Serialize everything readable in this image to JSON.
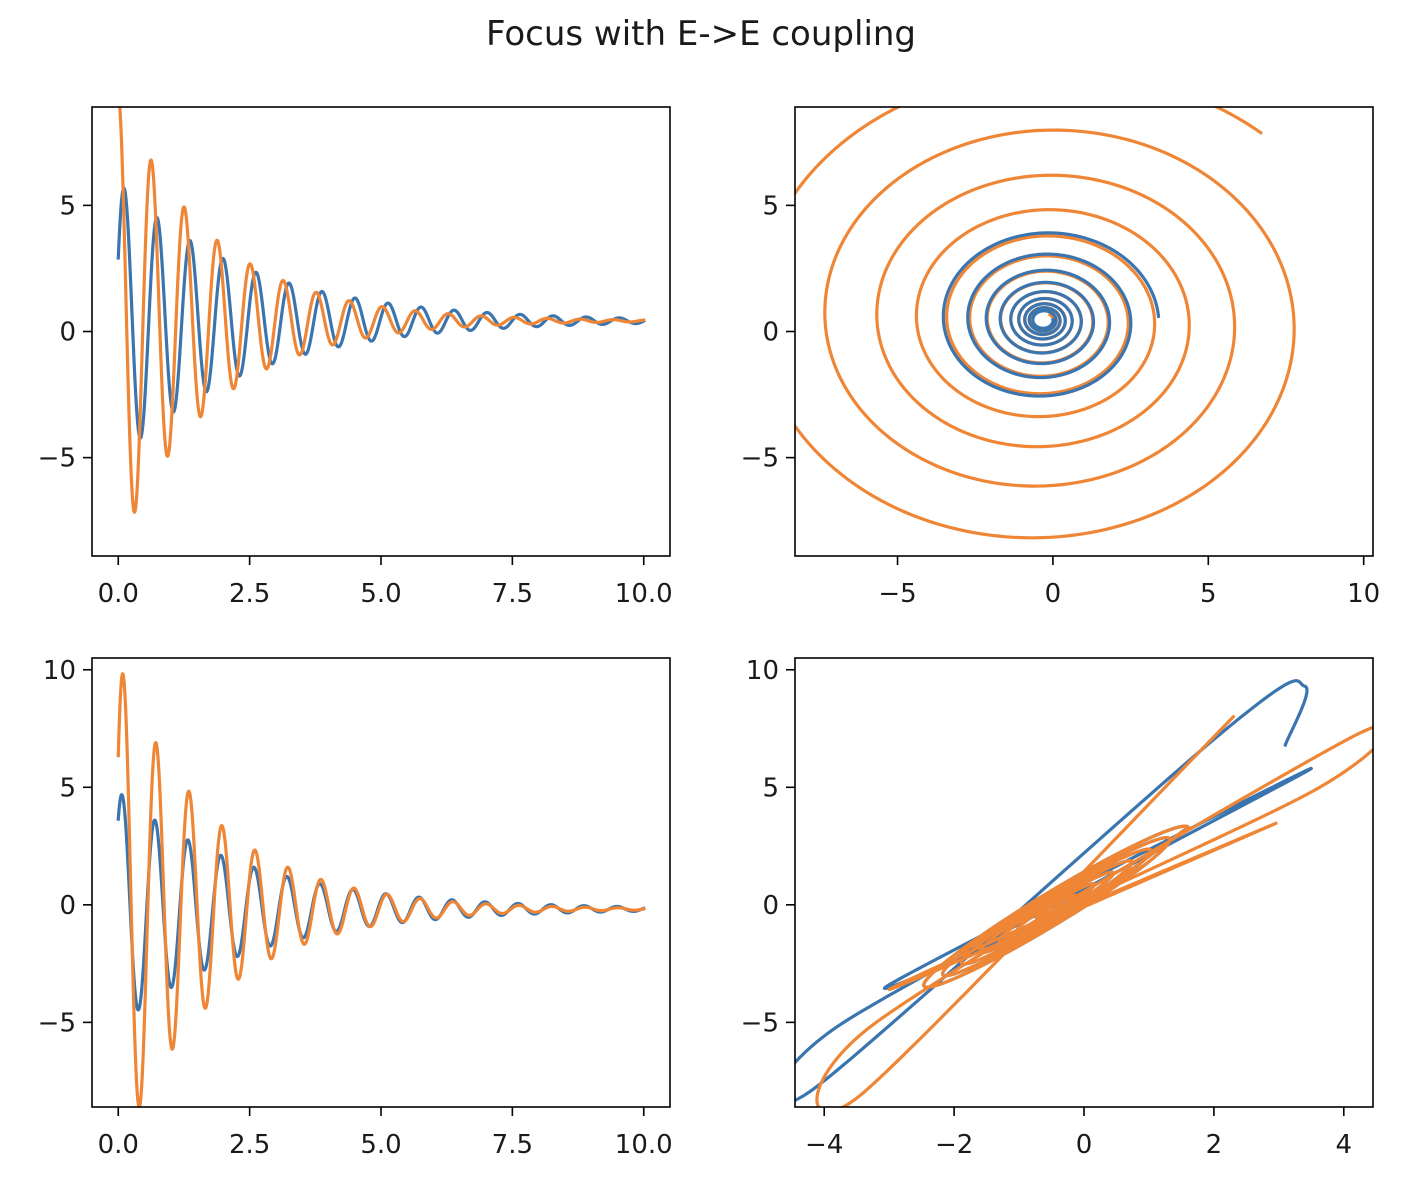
{
  "figure": {
    "suptitle": "Focus with E->E coupling",
    "colors": {
      "blue": "#3b75af",
      "orange": "#ef8636"
    }
  },
  "chart_data": [
    {
      "type": "line",
      "panel": "top-left",
      "title": "",
      "xlabel": "",
      "ylabel": "",
      "xlim": [
        -0.5,
        10.5
      ],
      "ylim": [
        -8.9,
        8.9
      ],
      "xticks": [
        0.0,
        2.5,
        5.0,
        7.5,
        10.0
      ],
      "xtick_labels": [
        "0.0",
        "2.5",
        "5.0",
        "7.5",
        "10.0"
      ],
      "yticks": [
        -5,
        0,
        5
      ],
      "ytick_labels": [
        "−5",
        "0",
        "5"
      ],
      "series": [
        {
          "color": "#3b75af",
          "model": "damped_oscillation",
          "t_range": [
            0,
            10
          ],
          "offset": 0.42,
          "amplitude": 5.5,
          "decay_rate": 0.4,
          "angular_freq": 10.0,
          "phase": -1.1
        },
        {
          "color": "#ef8636",
          "model": "damped_oscillation",
          "t_range": [
            0,
            10
          ],
          "offset": 0.42,
          "amplitude": 9.0,
          "decay_rate": 0.55,
          "angular_freq": 10.0,
          "phase": 0.0
        }
      ]
    },
    {
      "type": "line",
      "panel": "top-right",
      "title": "",
      "xlabel": "",
      "ylabel": "",
      "xlim": [
        -8.3,
        10.3
      ],
      "ylim": [
        -8.9,
        8.9
      ],
      "xticks": [
        -5,
        0,
        5,
        10
      ],
      "xtick_labels": [
        "−5",
        "0",
        "5",
        "10"
      ],
      "yticks": [
        -5,
        0,
        5
      ],
      "ytick_labels": [
        "−5",
        "0",
        "5"
      ],
      "series": [
        {
          "color": "#ef8636",
          "model": "spiral",
          "center": [
            -0.3,
            0.45
          ],
          "start": [
            6.8,
            8.0
          ],
          "r_start": 10.2,
          "r_end": 0.3,
          "turns": 13
        },
        {
          "color": "#3b75af",
          "model": "spiral",
          "center": [
            -0.3,
            0.45
          ],
          "start": [
            3.4,
            0.6
          ],
          "r_start": 3.7,
          "r_end": 0.3,
          "turns": 9
        }
      ]
    },
    {
      "type": "line",
      "panel": "bottom-left",
      "title": "",
      "xlabel": "",
      "ylabel": "",
      "xlim": [
        -0.5,
        10.5
      ],
      "ylim": [
        -8.6,
        10.5
      ],
      "xticks": [
        0.0,
        2.5,
        5.0,
        7.5,
        10.0
      ],
      "xtick_labels": [
        "0.0",
        "2.5",
        "5.0",
        "7.5",
        "10.0"
      ],
      "yticks": [
        -5,
        0,
        5,
        10
      ],
      "ytick_labels": [
        "−5",
        "0",
        "5",
        "10"
      ],
      "series": [
        {
          "color": "#3b75af",
          "model": "damped_oscillation",
          "t_range": [
            0,
            10
          ],
          "offset": -0.18,
          "amplitude": 5.0,
          "decay_rate": 0.4,
          "angular_freq": 10.0,
          "phase": -0.7
        },
        {
          "color": "#ef8636",
          "model": "damped_oscillation",
          "t_range": [
            0,
            10
          ],
          "offset": -0.18,
          "amplitude": 10.5,
          "decay_rate": 0.55,
          "angular_freq": 10.0,
          "phase": -0.9
        }
      ]
    },
    {
      "type": "line",
      "panel": "bottom-right",
      "title": "",
      "xlabel": "",
      "ylabel": "",
      "xlim": [
        -4.45,
        4.45
      ],
      "ylim": [
        -8.6,
        10.5
      ],
      "xticks": [
        -4,
        -2,
        0,
        2,
        4
      ],
      "xtick_labels": [
        "−4",
        "−2",
        "0",
        "2",
        "4"
      ],
      "yticks": [
        -5,
        0,
        5,
        10
      ],
      "ytick_labels": [
        "−5",
        "0",
        "5",
        "10"
      ],
      "series": [
        {
          "color": "#3b75af",
          "model": "tilted_ellipse_spiral",
          "center": [
            -0.5,
            -0.2
          ],
          "points_approx": [
            [
              3.1,
              6.8
            ],
            [
              3.4,
              9.3
            ],
            [
              2.2,
              7.5
            ],
            [
              -4.1,
              -7.7
            ],
            [
              -3.7,
              -5.0
            ],
            [
              3.5,
              5.8
            ],
            [
              -3.0,
              -3.4
            ],
            [
              0.0,
              0.0
            ]
          ]
        },
        {
          "color": "#ef8636",
          "model": "tilted_ellipse_spiral",
          "center": [
            -0.5,
            -0.2
          ],
          "points_approx": [
            [
              2.3,
              8.0
            ],
            [
              -3.4,
              -8.0
            ],
            [
              -3.2,
              -5.0
            ],
            [
              4.1,
              7.1
            ],
            [
              3.5,
              4.8
            ],
            [
              -3.0,
              -3.6
            ],
            [
              2.9,
              3.4
            ],
            [
              0.0,
              0.0
            ]
          ]
        }
      ]
    }
  ]
}
